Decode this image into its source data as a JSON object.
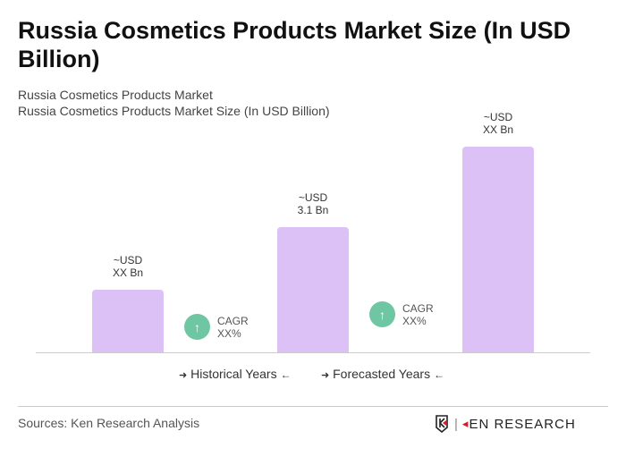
{
  "title": "Russia Cosmetics Products Market Size (In USD Billion)",
  "subtitle1": "Russia Cosmetics Products Market",
  "subtitle2": "Russia Cosmetics Products Market Size (In USD Billion)",
  "chart_data": {
    "type": "bar",
    "values": [
      1.55,
      3.1,
      5.1
    ],
    "data_labels": [
      [
        "~USD",
        "XX Bn"
      ],
      [
        "~USD",
        "3.1 Bn"
      ],
      [
        "~USD",
        "XX Bn"
      ]
    ],
    "bar_color": "#dcc1f7",
    "cagr": [
      {
        "label": "CAGR",
        "value": "XX%"
      },
      {
        "label": "CAGR",
        "value": "XX%"
      }
    ],
    "cagr_color": "#6fc6a3",
    "legend": [
      "Historical Years",
      "Forecasted Years"
    ]
  },
  "sources": "Sources: Ken Research Analysis",
  "logo": "KEN RESEARCH"
}
